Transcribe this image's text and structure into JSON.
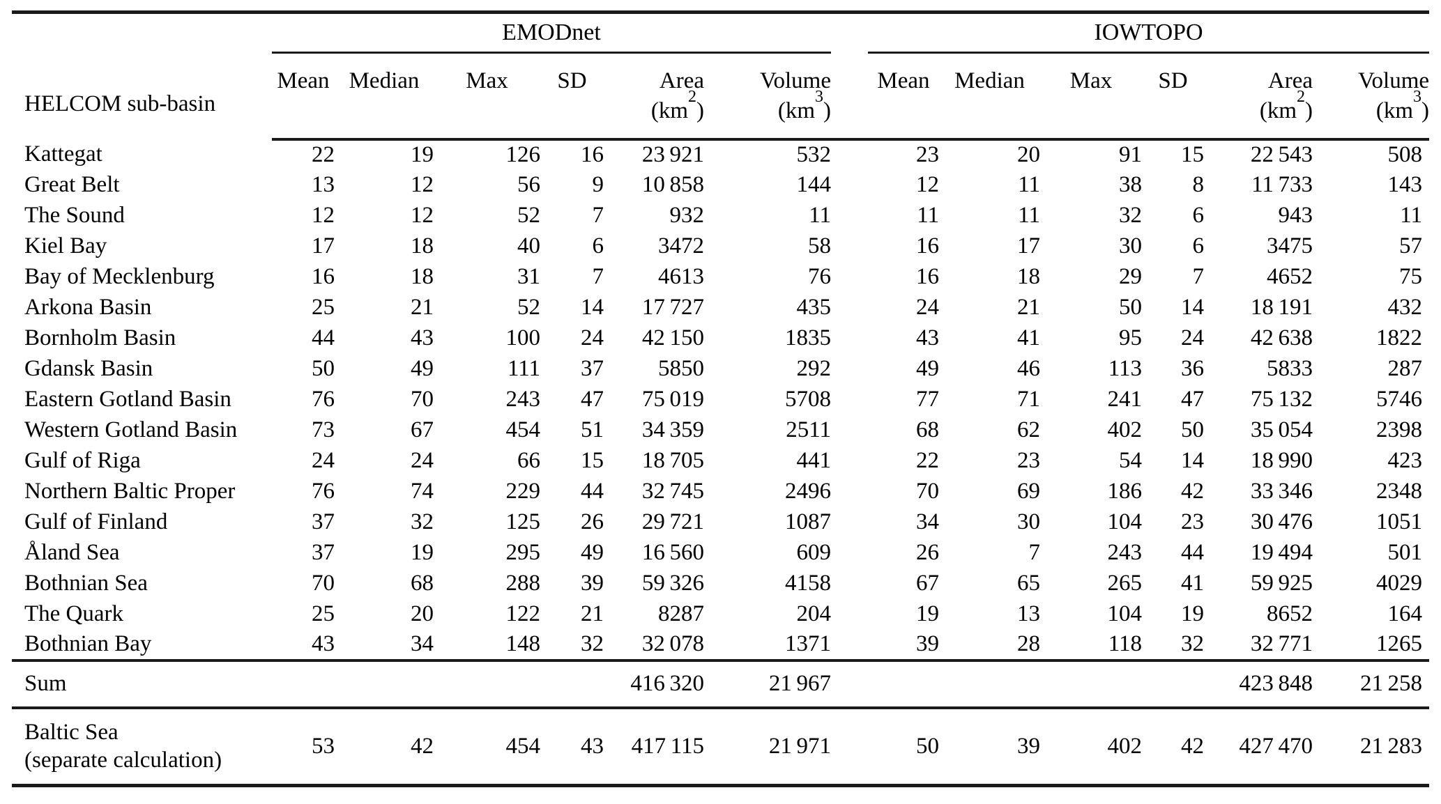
{
  "table": {
    "corner_header": "HELCOM sub-basin",
    "group_headers": [
      "EMODnet",
      "IOWTOPO"
    ],
    "column_headers": [
      {
        "label": "Mean"
      },
      {
        "label": "Median"
      },
      {
        "label": "Max"
      },
      {
        "label": "SD"
      },
      {
        "label": "Area",
        "unit_base": "(km",
        "unit_exp": "2",
        "unit_close": ")"
      },
      {
        "label": "Volume",
        "unit_base": "(km",
        "unit_exp": "3",
        "unit_close": ")"
      }
    ],
    "rows": [
      {
        "name": "Kattegat",
        "emodnet": [
          "22",
          "19",
          "126",
          "16",
          "23 921",
          "532"
        ],
        "iowtopo": [
          "23",
          "20",
          "91",
          "15",
          "22 543",
          "508"
        ]
      },
      {
        "name": "Great Belt",
        "emodnet": [
          "13",
          "12",
          "56",
          "9",
          "10 858",
          "144"
        ],
        "iowtopo": [
          "12",
          "11",
          "38",
          "8",
          "11 733",
          "143"
        ]
      },
      {
        "name": "The Sound",
        "emodnet": [
          "12",
          "12",
          "52",
          "7",
          "932",
          "11"
        ],
        "iowtopo": [
          "11",
          "11",
          "32",
          "6",
          "943",
          "11"
        ]
      },
      {
        "name": "Kiel Bay",
        "emodnet": [
          "17",
          "18",
          "40",
          "6",
          "3472",
          "58"
        ],
        "iowtopo": [
          "16",
          "17",
          "30",
          "6",
          "3475",
          "57"
        ]
      },
      {
        "name": "Bay of Mecklenburg",
        "emodnet": [
          "16",
          "18",
          "31",
          "7",
          "4613",
          "76"
        ],
        "iowtopo": [
          "16",
          "18",
          "29",
          "7",
          "4652",
          "75"
        ]
      },
      {
        "name": "Arkona Basin",
        "emodnet": [
          "25",
          "21",
          "52",
          "14",
          "17 727",
          "435"
        ],
        "iowtopo": [
          "24",
          "21",
          "50",
          "14",
          "18 191",
          "432"
        ]
      },
      {
        "name": "Bornholm Basin",
        "emodnet": [
          "44",
          "43",
          "100",
          "24",
          "42 150",
          "1835"
        ],
        "iowtopo": [
          "43",
          "41",
          "95",
          "24",
          "42 638",
          "1822"
        ]
      },
      {
        "name": "Gdansk Basin",
        "emodnet": [
          "50",
          "49",
          "111",
          "37",
          "5850",
          "292"
        ],
        "iowtopo": [
          "49",
          "46",
          "113",
          "36",
          "5833",
          "287"
        ]
      },
      {
        "name": "Eastern Gotland Basin",
        "emodnet": [
          "76",
          "70",
          "243",
          "47",
          "75 019",
          "5708"
        ],
        "iowtopo": [
          "77",
          "71",
          "241",
          "47",
          "75 132",
          "5746"
        ]
      },
      {
        "name": "Western Gotland Basin",
        "emodnet": [
          "73",
          "67",
          "454",
          "51",
          "34 359",
          "2511"
        ],
        "iowtopo": [
          "68",
          "62",
          "402",
          "50",
          "35 054",
          "2398"
        ]
      },
      {
        "name": "Gulf of Riga",
        "emodnet": [
          "24",
          "24",
          "66",
          "15",
          "18 705",
          "441"
        ],
        "iowtopo": [
          "22",
          "23",
          "54",
          "14",
          "18 990",
          "423"
        ]
      },
      {
        "name": "Northern Baltic Proper",
        "emodnet": [
          "76",
          "74",
          "229",
          "44",
          "32 745",
          "2496"
        ],
        "iowtopo": [
          "70",
          "69",
          "186",
          "42",
          "33 346",
          "2348"
        ]
      },
      {
        "name": "Gulf of Finland",
        "emodnet": [
          "37",
          "32",
          "125",
          "26",
          "29 721",
          "1087"
        ],
        "iowtopo": [
          "34",
          "30",
          "104",
          "23",
          "30 476",
          "1051"
        ]
      },
      {
        "name": "Åland Sea",
        "emodnet": [
          "37",
          "19",
          "295",
          "49",
          "16 560",
          "609"
        ],
        "iowtopo": [
          "26",
          "7",
          "243",
          "44",
          "19 494",
          "501"
        ]
      },
      {
        "name": "Bothnian Sea",
        "emodnet": [
          "70",
          "68",
          "288",
          "39",
          "59 326",
          "4158"
        ],
        "iowtopo": [
          "67",
          "65",
          "265",
          "41",
          "59 925",
          "4029"
        ]
      },
      {
        "name": "The Quark",
        "emodnet": [
          "25",
          "20",
          "122",
          "21",
          "8287",
          "204"
        ],
        "iowtopo": [
          "19",
          "13",
          "104",
          "19",
          "8652",
          "164"
        ]
      },
      {
        "name": "Bothnian Bay",
        "emodnet": [
          "43",
          "34",
          "148",
          "32",
          "32 078",
          "1371"
        ],
        "iowtopo": [
          "39",
          "28",
          "118",
          "32",
          "32 771",
          "1265"
        ]
      }
    ],
    "sum_row": {
      "name": "Sum",
      "emodnet": [
        "",
        "",
        "",
        "",
        "416 320",
        "21 967"
      ],
      "iowtopo": [
        "",
        "",
        "",
        "",
        "423 848",
        "21 258"
      ]
    },
    "baltic_row": {
      "name_line1": "Baltic Sea",
      "name_line2": "(separate calculation)",
      "emodnet": [
        "53",
        "42",
        "454",
        "43",
        "417 115",
        "21 971"
      ],
      "iowtopo": [
        "50",
        "39",
        "402",
        "42",
        "427 470",
        "21 283"
      ]
    }
  }
}
